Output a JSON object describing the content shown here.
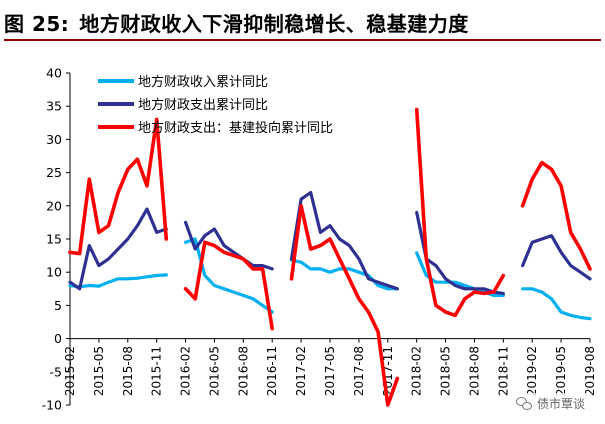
{
  "figure": {
    "number": "图 25:",
    "title": "地方财政收入下滑抑制稳增长、稳基建力度"
  },
  "watermark": {
    "text": "债市覃谈",
    "icon": "wechat-icon"
  },
  "colors": {
    "revenue": "#00b0f0",
    "expenditure": "#2e3192",
    "infrastructure": "#ff0000",
    "title_rule": "#8e0000"
  },
  "chart_data": {
    "type": "line",
    "title": "",
    "xlabel": "",
    "ylabel": "",
    "ylim": [
      -10,
      40
    ],
    "yticks": [
      -10,
      -5,
      0,
      5,
      10,
      15,
      20,
      25,
      30,
      35,
      40
    ],
    "grid": false,
    "legend_position": "top-left",
    "x": [
      "2015-02",
      "2015-03",
      "2015-04",
      "2015-05",
      "2015-06",
      "2015-07",
      "2015-08",
      "2015-09",
      "2015-10",
      "2015-11",
      "2015-12",
      "2016-01",
      "2016-02",
      "2016-03",
      "2016-04",
      "2016-05",
      "2016-06",
      "2016-07",
      "2016-08",
      "2016-09",
      "2016-10",
      "2016-11",
      "2016-12",
      "2017-01",
      "2017-02",
      "2017-03",
      "2017-04",
      "2017-05",
      "2017-06",
      "2017-07",
      "2017-08",
      "2017-09",
      "2017-10",
      "2017-11",
      "2017-12",
      "2018-01",
      "2018-02",
      "2018-03",
      "2018-04",
      "2018-05",
      "2018-06",
      "2018-07",
      "2018-08",
      "2018-09",
      "2018-10",
      "2018-11",
      "2018-12",
      "2019-01",
      "2019-02",
      "2019-03",
      "2019-04",
      "2019-05",
      "2019-06",
      "2019-07",
      "2019-08"
    ],
    "tick_labels": [
      "2015-02",
      "2015-05",
      "2015-08",
      "2015-11",
      "2016-02",
      "2016-05",
      "2016-08",
      "2016-11",
      "2017-02",
      "2017-05",
      "2017-08",
      "2017-11",
      "2018-02",
      "2018-05",
      "2018-08",
      "2018-11",
      "2019-02",
      "2019-05",
      "2019-08"
    ],
    "series": [
      {
        "name": "地方财政收入累计同比",
        "color": "#00b0f0",
        "values": [
          8,
          7.8,
          8,
          7.9,
          8.5,
          9,
          9,
          9.1,
          9.3,
          9.5,
          9.6,
          null,
          14.5,
          15,
          9.5,
          8,
          7.5,
          7,
          6.5,
          6,
          5,
          4,
          null,
          11.8,
          11.5,
          10.5,
          10.5,
          10,
          10.5,
          10.5,
          10,
          9.5,
          8,
          7.5,
          7.5,
          null,
          12.9,
          9.5,
          8.5,
          8.5,
          8.5,
          8,
          7.5,
          7,
          6.5,
          6.5,
          null,
          7.5,
          7.5,
          7,
          6,
          4,
          3.5,
          3.2,
          3
        ]
      },
      {
        "name": "地方财政支出累计同比",
        "color": "#2e3192",
        "values": [
          8.5,
          7.5,
          14,
          11,
          12,
          13.5,
          15,
          17,
          19.5,
          16,
          16.5,
          null,
          17.5,
          13.5,
          15.5,
          16.5,
          14,
          13,
          12,
          11,
          11,
          10.5,
          null,
          12,
          21,
          22,
          16,
          17,
          15,
          14,
          12,
          9,
          8.5,
          8,
          7.5,
          null,
          19,
          12,
          11,
          9,
          8,
          7.5,
          7.5,
          7.5,
          7,
          6.8,
          null,
          11,
          14.5,
          15,
          15.5,
          13,
          11,
          10,
          9
        ]
      },
      {
        "name": "地方财政支出：基建投向累计同比",
        "color": "#ff0000",
        "values": [
          13,
          12.8,
          24,
          16,
          17,
          22,
          25.5,
          27,
          23,
          33,
          15,
          null,
          7.5,
          6,
          14.5,
          14,
          13,
          12.5,
          12,
          10.5,
          10.5,
          1.5,
          null,
          9,
          20,
          13.5,
          14,
          15,
          12,
          9,
          6,
          4,
          1,
          -10,
          -6,
          null,
          34.5,
          12,
          5,
          4,
          3.5,
          6,
          7,
          6.8,
          7,
          9.5,
          null,
          20,
          24,
          26.5,
          25.5,
          23,
          16,
          13.5,
          10.5
        ]
      }
    ]
  }
}
